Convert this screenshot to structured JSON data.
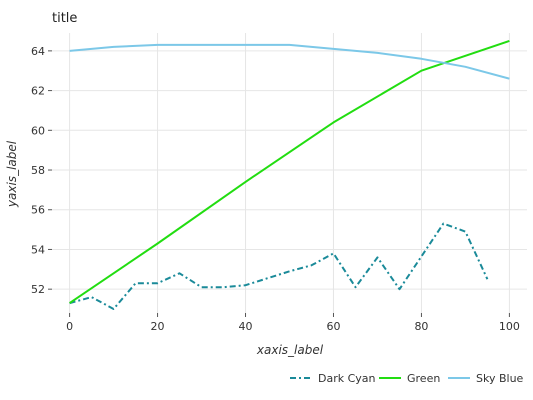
{
  "chart_data": {
    "type": "line",
    "title": "title",
    "xlabel": "xaxis_label",
    "ylabel": "yaxis_label",
    "xlim": [
      -4,
      104
    ],
    "ylim": [
      50.8,
      64.9
    ],
    "xticks": [
      0,
      20,
      40,
      60,
      80,
      100
    ],
    "yticks": [
      52,
      54,
      56,
      58,
      60,
      62,
      64
    ],
    "grid": true,
    "legend_position": "bottom",
    "series": [
      {
        "name": "Dark Cyan",
        "color": "#1a8a99",
        "dash": "dashdot",
        "points": [
          [
            0,
            51.3
          ],
          [
            5,
            51.6
          ],
          [
            10,
            51.0
          ],
          [
            15,
            52.3
          ],
          [
            20,
            52.3
          ],
          [
            25,
            52.8
          ],
          [
            30,
            52.1
          ],
          [
            35,
            52.1
          ],
          [
            40,
            52.2
          ],
          [
            50,
            52.9
          ],
          [
            55,
            53.2
          ],
          [
            60,
            53.8
          ],
          [
            65,
            52.1
          ],
          [
            70,
            53.6
          ],
          [
            75,
            52.0
          ],
          [
            85,
            55.3
          ],
          [
            90,
            54.9
          ],
          [
            95,
            52.5
          ]
        ]
      },
      {
        "name": "Green",
        "color": "#22dd11",
        "dash": "solid",
        "points": [
          [
            0,
            51.3
          ],
          [
            20,
            54.3
          ],
          [
            40,
            57.4
          ],
          [
            60,
            60.4
          ],
          [
            80,
            63.0
          ],
          [
            100,
            64.5
          ]
        ]
      },
      {
        "name": "Sky Blue",
        "color": "#7cc8e8",
        "dash": "solid",
        "points": [
          [
            0,
            64.0
          ],
          [
            10,
            64.2
          ],
          [
            20,
            64.3
          ],
          [
            30,
            64.3
          ],
          [
            40,
            64.3
          ],
          [
            50,
            64.3
          ],
          [
            60,
            64.1
          ],
          [
            70,
            63.9
          ],
          [
            80,
            63.6
          ],
          [
            90,
            63.2
          ],
          [
            100,
            62.6
          ]
        ]
      }
    ]
  }
}
